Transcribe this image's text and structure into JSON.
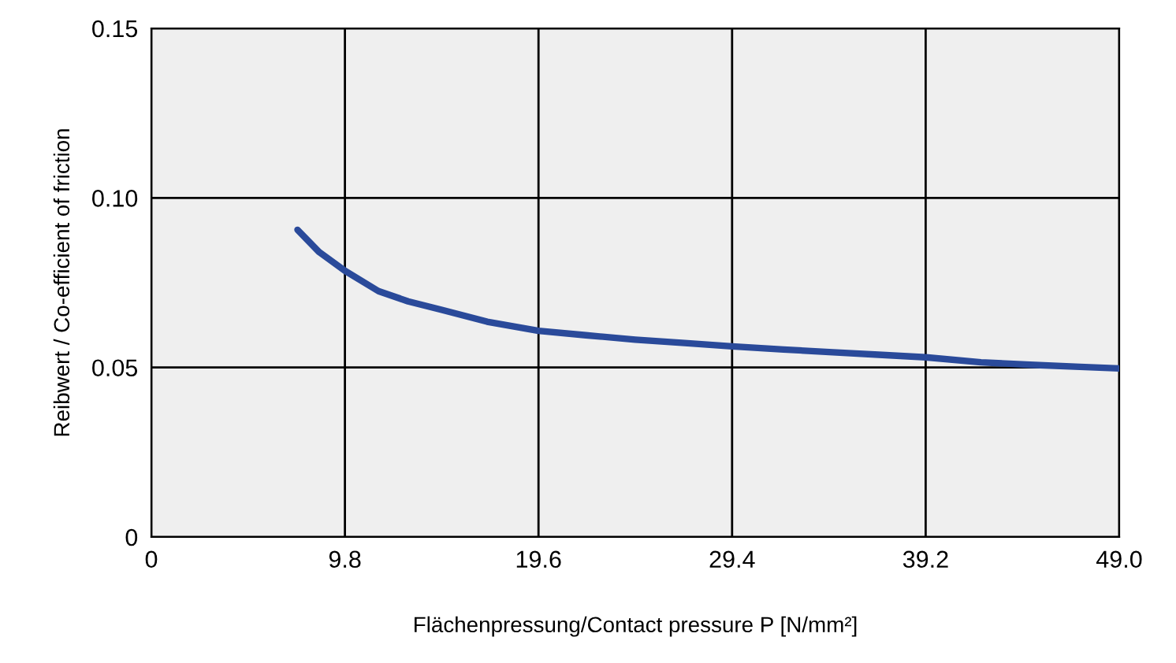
{
  "chart_data": {
    "type": "line",
    "xlabel": "Flächenpressung/Contact pressure P [N/mm²]",
    "ylabel": "Reibwert / Co-efficient of friction",
    "series": [
      {
        "color": "#2a4a9a",
        "x": [
          7.4,
          8.5,
          9.8,
          11.5,
          13.0,
          14.7,
          17.0,
          19.6,
          22.0,
          24.5,
          27.0,
          29.4,
          32.0,
          34.5,
          37.0,
          39.2,
          42.0,
          44.5,
          47.0,
          49.0
        ],
        "values": [
          0.0906,
          0.084,
          0.0785,
          0.0725,
          0.0695,
          0.067,
          0.0635,
          0.0608,
          0.0595,
          0.0582,
          0.0572,
          0.0562,
          0.0553,
          0.0545,
          0.0537,
          0.053,
          0.0515,
          0.0508,
          0.0502,
          0.0497
        ]
      }
    ],
    "xlim": [
      0,
      49
    ],
    "xticks": [
      0,
      9.8,
      19.6,
      29.4,
      39.2,
      {
        "value": 49,
        "label": "49.0"
      }
    ],
    "ylim": [
      0,
      0.15
    ],
    "yticks": [
      0,
      0.05,
      {
        "value": 0.1,
        "label": "0.10"
      },
      {
        "value": 0.15,
        "label": "0.15"
      }
    ],
    "grid": true,
    "legend": false,
    "marker": "none",
    "line_style": "solid"
  }
}
